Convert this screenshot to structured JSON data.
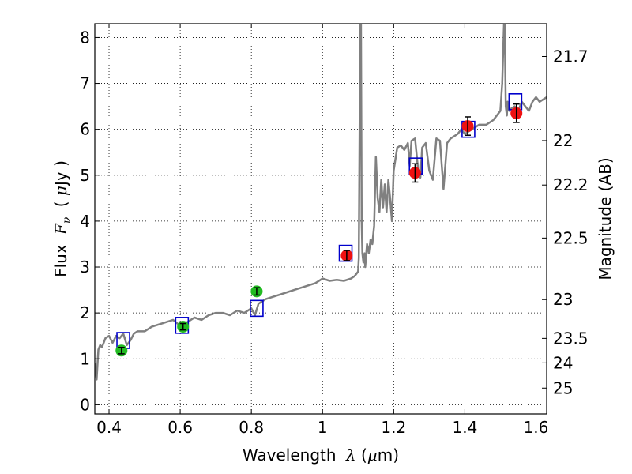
{
  "chart_data": {
    "type": "scatter",
    "xlabel_text": "Wavelength",
    "xlabel_symbol": "λ",
    "xlabel_unit_open": " (",
    "xlabel_unit_mu": "μ",
    "xlabel_unit_rest": "m)",
    "ylabel_text": "Flux",
    "ylabel_symbol": "F",
    "ylabel_subscript": "ν",
    "ylabel_unit_open": "( ",
    "ylabel_unit_mu": "μ",
    "ylabel_unit_rest": "Jy )",
    "y2label": "Magnitude (AB)",
    "xlim": [
      0.36,
      1.63
    ],
    "ylim": [
      -0.2,
      8.3
    ],
    "grid": true,
    "xticks": [
      0.4,
      0.6,
      0.8,
      1.0,
      1.2,
      1.4,
      1.6
    ],
    "xtick_labels": [
      "0.4",
      "0.6",
      "0.8",
      "1",
      "1.2",
      "1.4",
      "1.6"
    ],
    "yticks": [
      0,
      1,
      2,
      3,
      4,
      5,
      6,
      7,
      8
    ],
    "ytick_labels": [
      "0",
      "1",
      "2",
      "3",
      "4",
      "5",
      "6",
      "7",
      "8"
    ],
    "mag_ticks": [
      {
        "mag": 21.7,
        "label": "21.7"
      },
      {
        "mag": 22,
        "label": "22"
      },
      {
        "mag": 22.2,
        "label": "22.2"
      },
      {
        "mag": 22.5,
        "label": "22.5"
      },
      {
        "mag": 23,
        "label": "23"
      },
      {
        "mag": 23.5,
        "label": "23.5"
      },
      {
        "mag": 24,
        "label": "24"
      },
      {
        "mag": 25,
        "label": "25"
      }
    ],
    "template_spectrum": {
      "color": "#808080",
      "x": [
        0.36,
        0.365,
        0.37,
        0.375,
        0.38,
        0.39,
        0.4,
        0.41,
        0.42,
        0.43,
        0.44,
        0.45,
        0.46,
        0.47,
        0.48,
        0.5,
        0.52,
        0.54,
        0.56,
        0.58,
        0.6,
        0.62,
        0.64,
        0.66,
        0.68,
        0.7,
        0.72,
        0.74,
        0.76,
        0.78,
        0.8,
        0.81,
        0.82,
        0.83,
        0.84,
        0.86,
        0.88,
        0.9,
        0.92,
        0.94,
        0.96,
        0.98,
        1.0,
        1.02,
        1.04,
        1.06,
        1.08,
        1.09,
        1.1,
        1.102,
        1.106,
        1.108,
        1.11,
        1.112,
        1.115,
        1.118,
        1.12,
        1.125,
        1.13,
        1.135,
        1.14,
        1.145,
        1.15,
        1.155,
        1.16,
        1.165,
        1.17,
        1.175,
        1.18,
        1.185,
        1.19,
        1.195,
        1.2,
        1.21,
        1.22,
        1.23,
        1.24,
        1.245,
        1.25,
        1.26,
        1.27,
        1.275,
        1.28,
        1.29,
        1.3,
        1.31,
        1.32,
        1.33,
        1.34,
        1.35,
        1.36,
        1.37,
        1.38,
        1.39,
        1.4,
        1.42,
        1.44,
        1.46,
        1.48,
        1.5,
        1.505,
        1.51,
        1.512,
        1.515,
        1.518,
        1.52,
        1.525,
        1.53,
        1.54,
        1.55,
        1.56,
        1.57,
        1.58,
        1.59,
        1.6,
        1.61,
        1.62,
        1.63
      ],
      "y": [
        0.9,
        0.55,
        1.2,
        1.3,
        1.25,
        1.45,
        1.5,
        1.35,
        1.5,
        1.45,
        1.55,
        1.3,
        1.4,
        1.55,
        1.6,
        1.6,
        1.7,
        1.75,
        1.8,
        1.85,
        1.72,
        1.8,
        1.9,
        1.85,
        1.95,
        2.0,
        2.0,
        1.95,
        2.05,
        2.0,
        2.1,
        1.95,
        2.2,
        2.25,
        2.3,
        2.35,
        2.4,
        2.45,
        2.5,
        2.55,
        2.6,
        2.65,
        2.75,
        2.7,
        2.72,
        2.7,
        2.75,
        2.8,
        2.9,
        3.2,
        8.3,
        8.3,
        4.0,
        3.3,
        3.1,
        3.3,
        3.0,
        3.5,
        3.3,
        3.6,
        3.5,
        3.9,
        5.4,
        4.5,
        4.2,
        4.9,
        4.3,
        4.8,
        4.2,
        4.9,
        4.5,
        4.0,
        5.1,
        5.6,
        5.65,
        5.55,
        5.7,
        5.2,
        5.75,
        5.8,
        5.0,
        4.95,
        5.6,
        5.7,
        5.1,
        4.9,
        5.8,
        5.75,
        4.7,
        5.7,
        5.8,
        5.85,
        5.9,
        6.0,
        5.9,
        6.0,
        6.1,
        6.1,
        6.2,
        6.4,
        7.0,
        8.3,
        8.3,
        6.5,
        6.3,
        6.6,
        6.4,
        6.45,
        6.5,
        6.4,
        6.6,
        6.5,
        6.4,
        6.6,
        6.7,
        6.6,
        6.65,
        6.7
      ]
    },
    "model_photometry": {
      "color": "#0000cc",
      "x": [
        0.44,
        0.605,
        0.815,
        1.065,
        1.262,
        1.41,
        1.542
      ],
      "y": [
        1.4,
        1.73,
        2.1,
        3.3,
        5.2,
        6.0,
        6.6
      ]
    },
    "observed_optical": {
      "color": "#22bb22",
      "x": [
        0.435,
        0.608,
        0.815
      ],
      "y": [
        1.18,
        1.7,
        2.47
      ],
      "yerr": [
        0.07,
        0.07,
        0.08
      ]
    },
    "observed_nir": {
      "color": "#ee1111",
      "x": [
        1.068,
        1.26,
        1.408,
        1.545
      ],
      "y": [
        3.25,
        5.05,
        6.07,
        6.35
      ],
      "yerr": [
        0.11,
        0.2,
        0.2,
        0.2
      ]
    }
  }
}
